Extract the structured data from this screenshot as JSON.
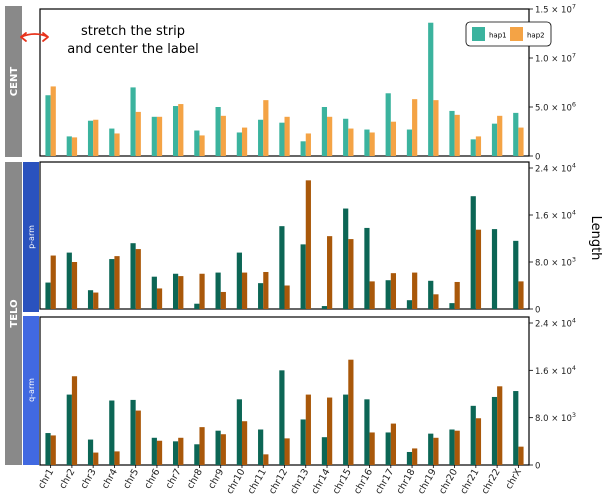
{
  "annotation": {
    "line1": "stretch the strip",
    "line2": "and center the label"
  },
  "strips": {
    "cent": "CENT",
    "telo": "TELO",
    "p_arm": "p-arm",
    "q_arm": "q-arm"
  },
  "y_axis_title": "Length",
  "colors": {
    "hap1_cent": "#3bb39e",
    "hap2_cent": "#f4a345",
    "hap1_telo": "#0c6655",
    "hap2_telo": "#a9580a",
    "outer_strip": "#898989",
    "telo_p_strip": "#2a52be",
    "telo_q_strip": "#4169e1",
    "annotation_arrow": "#e8331c"
  },
  "chart_data": [
    {
      "id": "cent",
      "type": "bar",
      "facet": "CENT",
      "categories": [
        "chr1",
        "chr2",
        "chr3",
        "chr4",
        "chr5",
        "chr6",
        "chr7",
        "chr8",
        "chr9",
        "chr10",
        "chr11",
        "chr12",
        "chr13",
        "chr14",
        "chr15",
        "chr16",
        "chr17",
        "chr18",
        "chr19",
        "chr20",
        "chr21",
        "chr22",
        "chrX"
      ],
      "series": [
        {
          "name": "hap1",
          "values": [
            6200000,
            2000000,
            3600000,
            2800000,
            7000000,
            4000000,
            5100000,
            2600000,
            5000000,
            2400000,
            3700000,
            3400000,
            1500000,
            5000000,
            3800000,
            2700000,
            6400000,
            2700000,
            13600000,
            4600000,
            1700000,
            3300000,
            4400000
          ]
        },
        {
          "name": "hap2",
          "values": [
            7100000,
            1900000,
            3700000,
            2300000,
            4500000,
            4000000,
            5300000,
            2100000,
            4100000,
            2900000,
            5700000,
            4000000,
            2300000,
            4000000,
            2800000,
            2400000,
            3500000,
            5800000,
            5700000,
            4200000,
            2000000,
            4100000,
            2900000
          ]
        }
      ],
      "ylim": [
        0,
        15000000
      ],
      "yticks": [
        0,
        5000000,
        10000000,
        15000000
      ],
      "ytick_labels": [
        "0",
        "5.0 × 10^6",
        "1.0 × 10^7",
        "1.5 × 10^7"
      ],
      "legend": {
        "position": "top-right",
        "entries": [
          "hap1",
          "hap2"
        ]
      }
    },
    {
      "id": "telo-p",
      "type": "bar",
      "facet": "TELO / p-arm",
      "categories": [
        "chr1",
        "chr2",
        "chr3",
        "chr4",
        "chr5",
        "chr6",
        "chr7",
        "chr8",
        "chr9",
        "chr10",
        "chr11",
        "chr12",
        "chr13",
        "chr14",
        "chr15",
        "chr16",
        "chr17",
        "chr18",
        "chr19",
        "chr20",
        "chr21",
        "chr22",
        "chrX"
      ],
      "series": [
        {
          "name": "hap1",
          "values": [
            4500,
            9600,
            3200,
            8500,
            11200,
            5500,
            6000,
            900,
            6200,
            9600,
            4400,
            14100,
            11000,
            500,
            17100,
            13800,
            4900,
            1500,
            4800,
            1000,
            19200,
            13600,
            11600
          ]
        },
        {
          "name": "hap2",
          "values": [
            9100,
            8000,
            2800,
            9000,
            10200,
            3500,
            5600,
            6000,
            2900,
            6200,
            6300,
            4000,
            21900,
            12400,
            11900,
            4700,
            6100,
            6200,
            2500,
            4600,
            13500,
            0,
            4700
          ]
        }
      ],
      "ylim": [
        0,
        24000
      ],
      "yticks": [
        0,
        8000,
        16000,
        24000
      ],
      "ytick_labels": [
        "0",
        "8.0 × 10^3",
        "1.6 × 10^4",
        "2.4 × 10^4"
      ]
    },
    {
      "id": "telo-q",
      "type": "bar",
      "facet": "TELO / q-arm",
      "categories": [
        "chr1",
        "chr2",
        "chr3",
        "chr4",
        "chr5",
        "chr6",
        "chr7",
        "chr8",
        "chr9",
        "chr10",
        "chr11",
        "chr12",
        "chr13",
        "chr14",
        "chr15",
        "chr16",
        "chr17",
        "chr18",
        "chr19",
        "chr20",
        "chr21",
        "chr22",
        "chrX"
      ],
      "series": [
        {
          "name": "hap1",
          "values": [
            5400,
            11900,
            4300,
            10900,
            11000,
            4600,
            4000,
            3500,
            5800,
            11100,
            6000,
            16000,
            7700,
            4700,
            11900,
            11100,
            5500,
            2200,
            5300,
            6000,
            10000,
            11500,
            12500
          ]
        },
        {
          "name": "hap2",
          "values": [
            5000,
            15000,
            2100,
            2300,
            9200,
            4100,
            4600,
            6400,
            5200,
            7400,
            1800,
            4500,
            11900,
            11400,
            17800,
            5500,
            7000,
            2800,
            4600,
            5800,
            7900,
            13300,
            3100
          ]
        }
      ],
      "ylim": [
        0,
        24000
      ],
      "yticks": [
        0,
        8000,
        16000,
        24000
      ],
      "ytick_labels": [
        "0",
        "8.0 × 10^3",
        "1.6 × 10^4",
        "2.4 × 10^4"
      ]
    }
  ]
}
